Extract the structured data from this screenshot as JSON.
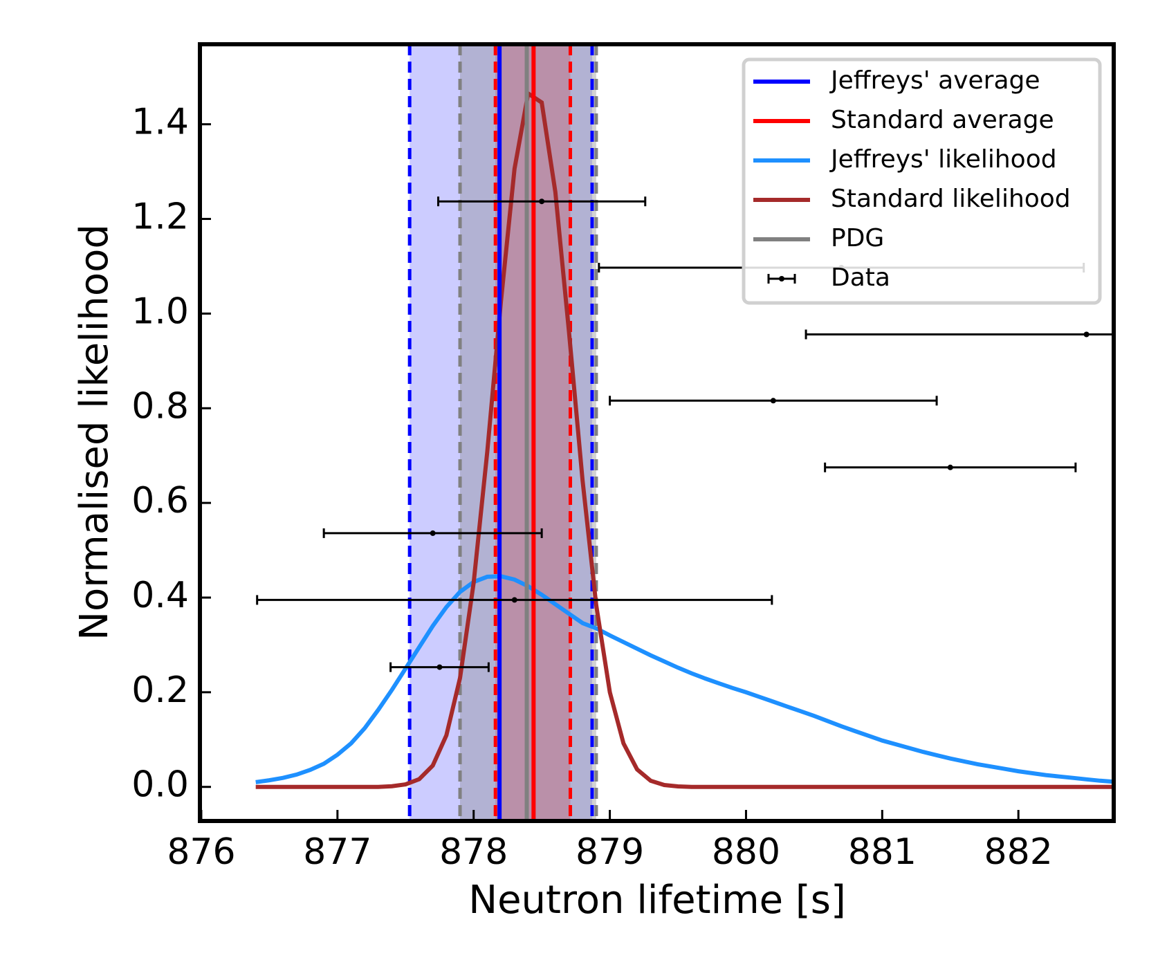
{
  "chart_data": {
    "type": "likelihood",
    "xlabel": "Neutron lifetime [s]",
    "ylabel": "Normalised likelihood",
    "xlim": [
      875.99,
      882.7
    ],
    "ylim": [
      -0.072,
      1.569
    ],
    "xticks": [
      876,
      877,
      878,
      879,
      880,
      881,
      882
    ],
    "yticks": [
      {
        "value": 0,
        "label": "0.0"
      },
      0.2,
      0.4,
      0.6,
      0.8,
      {
        "value": 1,
        "label": "1.0"
      },
      1.2,
      1.4
    ],
    "legend": "upper right",
    "vlines": [
      {
        "name": "Jeffreys' average",
        "color": "#0000ff",
        "value": 878.19,
        "lower": 877.53,
        "upper": 878.87
      },
      {
        "name": "Standard average",
        "color": "#ff0000",
        "value": 878.44,
        "lower": 878.16,
        "upper": 878.71
      },
      {
        "name": "PDG",
        "color": "#808080",
        "value": 878.39,
        "lower": 877.9,
        "upper": 878.9
      }
    ],
    "x": [
      876.4,
      876.5,
      876.6,
      876.7,
      876.8,
      876.9,
      877.0,
      877.1,
      877.2,
      877.3,
      877.4,
      877.5,
      877.6,
      877.7,
      877.8,
      877.9,
      878.0,
      878.1,
      878.2,
      878.3,
      878.4,
      878.5,
      878.6,
      878.7,
      878.8,
      878.9,
      879.0,
      879.1,
      879.2,
      879.3,
      879.4,
      879.5,
      879.6,
      879.7,
      879.8,
      879.9,
      880.0,
      880.1,
      880.2,
      880.3,
      880.4,
      880.5,
      880.6,
      880.7,
      880.8,
      880.9,
      881.0,
      881.1,
      881.2,
      881.3,
      881.4,
      881.5,
      881.6,
      881.7,
      881.8,
      881.9,
      882.0,
      882.1,
      882.2,
      882.3,
      882.4,
      882.5,
      882.6,
      882.7
    ],
    "series": [
      {
        "name": "Jeffreys' likelihood",
        "color": "#1e90ff",
        "values": [
          0.01,
          0.014,
          0.019,
          0.026,
          0.036,
          0.049,
          0.068,
          0.092,
          0.124,
          0.163,
          0.205,
          0.25,
          0.295,
          0.34,
          0.38,
          0.412,
          0.433,
          0.444,
          0.445,
          0.438,
          0.424,
          0.406,
          0.386,
          0.366,
          0.346,
          0.335,
          0.32,
          0.306,
          0.292,
          0.278,
          0.265,
          0.252,
          0.24,
          0.229,
          0.219,
          0.209,
          0.2,
          0.19,
          0.18,
          0.17,
          0.16,
          0.15,
          0.139,
          0.128,
          0.118,
          0.108,
          0.098,
          0.09,
          0.082,
          0.074,
          0.067,
          0.06,
          0.054,
          0.048,
          0.043,
          0.038,
          0.033,
          0.029,
          0.025,
          0.022,
          0.019,
          0.016,
          0.013,
          0.011
        ]
      },
      {
        "name": "Standard likelihood",
        "color": "#a52a2a",
        "values": [
          0,
          0,
          0,
          0,
          0,
          0,
          0,
          0,
          0,
          0,
          0.0015,
          0.0053,
          0.0164,
          0.045,
          0.109,
          0.23,
          0.431,
          0.708,
          1.025,
          1.306,
          1.465,
          1.446,
          1.257,
          0.962,
          0.647,
          0.384,
          0.2,
          0.092,
          0.037,
          0.013,
          0.004,
          0.001,
          0,
          0,
          0,
          0,
          0,
          0,
          0,
          0,
          0,
          0,
          0,
          0,
          0,
          0,
          0,
          0,
          0,
          0,
          0,
          0,
          0,
          0,
          0,
          0,
          0,
          0,
          0,
          0,
          0,
          0,
          0,
          0
        ]
      }
    ],
    "data": {
      "name": "Data",
      "color": "#000000",
      "x": [
        878.5,
        880.7,
        882.5,
        880.2,
        881.5,
        877.7,
        878.3,
        877.75
      ],
      "xerr": [
        0.76,
        1.78,
        2.06,
        1.2,
        0.92,
        0.8,
        1.89,
        0.36
      ],
      "y": [
        1.237,
        1.097,
        0.956,
        0.816,
        0.675,
        0.536,
        0.395,
        0.253
      ]
    }
  }
}
